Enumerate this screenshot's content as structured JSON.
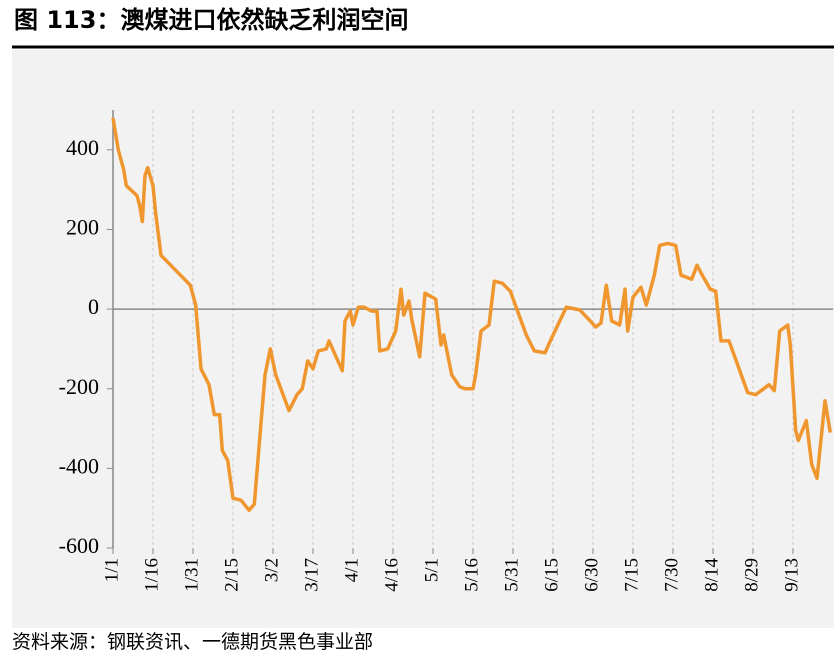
{
  "chart_data": {
    "type": "line",
    "title": "图 113：澳煤进口依然缺乏利润空间",
    "source": "资料来源：钢联资讯、一德期货黑色事业部",
    "x": [
      "1/1",
      "1/3",
      "1/5",
      "1/6",
      "1/10",
      "1/11",
      "1/12",
      "1/13",
      "1/14",
      "1/16",
      "1/17",
      "1/19",
      "1/30",
      "2/1",
      "2/3",
      "2/6",
      "2/8",
      "2/10",
      "2/11",
      "2/13",
      "2/15",
      "2/18",
      "2/21",
      "2/23",
      "2/27",
      "3/1",
      "3/3",
      "3/8",
      "3/11",
      "3/13",
      "3/15",
      "3/17",
      "3/19",
      "3/22",
      "3/23",
      "3/28",
      "3/29",
      "3/31",
      "4/1",
      "4/3",
      "4/5",
      "4/8",
      "4/10",
      "4/11",
      "4/14",
      "4/17",
      "4/19",
      "4/20",
      "4/22",
      "4/23",
      "4/26",
      "4/28",
      "5/2",
      "5/4",
      "5/5",
      "5/8",
      "5/11",
      "5/13",
      "5/16",
      "5/17",
      "5/19",
      "5/22",
      "5/24",
      "5/27",
      "5/30",
      "6/5",
      "6/8",
      "6/12",
      "6/14",
      "6/20",
      "6/25",
      "6/29",
      "7/1",
      "7/3",
      "7/5",
      "7/7",
      "7/10",
      "7/12",
      "7/13",
      "7/15",
      "7/18",
      "7/20",
      "7/23",
      "7/25",
      "7/28",
      "7/31",
      "8/2",
      "8/6",
      "8/8",
      "8/10",
      "8/13",
      "8/15",
      "8/17",
      "8/20",
      "8/27",
      "8/30",
      "9/2",
      "9/4",
      "9/6",
      "9/8",
      "9/11",
      "9/12",
      "9/14",
      "9/15",
      "9/18",
      "9/20",
      "9/22",
      "9/25",
      "9/27"
    ],
    "series": [
      {
        "color": "#f0962e",
        "values": [
          480,
          400,
          350,
          310,
          285,
          260,
          220,
          335,
          355,
          310,
          240,
          135,
          60,
          10,
          -150,
          -190,
          -265,
          -265,
          -355,
          -380,
          -475,
          -480,
          -505,
          -490,
          -165,
          -100,
          -165,
          -255,
          -215,
          -200,
          -130,
          -150,
          -105,
          -100,
          -80,
          -155,
          -30,
          -5,
          -40,
          5,
          5,
          -5,
          -5,
          -105,
          -100,
          -55,
          50,
          -15,
          20,
          -25,
          -120,
          40,
          25,
          -90,
          -65,
          -165,
          -195,
          -200,
          -200,
          -165,
          -55,
          -40,
          70,
          65,
          45,
          -65,
          -105,
          -110,
          -80,
          5,
          -2,
          -30,
          -45,
          -35,
          60,
          -30,
          -40,
          50,
          -55,
          30,
          55,
          10,
          85,
          160,
          165,
          160,
          85,
          75,
          110,
          85,
          50,
          45,
          -80,
          -80,
          -210,
          -215,
          -200,
          -190,
          -205,
          -55,
          -40,
          -90,
          -305,
          -330,
          -280,
          -390,
          -425,
          -230,
          -310
        ]
      }
    ],
    "xlim": [
      "1/1",
      "9/28"
    ],
    "xticks": [
      "1/1",
      "1/16",
      "1/31",
      "2/15",
      "3/2",
      "3/17",
      "4/1",
      "4/16",
      "5/1",
      "5/16",
      "5/31",
      "6/15",
      "6/30",
      "7/15",
      "7/30",
      "8/14",
      "8/29",
      "9/13"
    ],
    "ylim": [
      -600,
      500
    ],
    "yticks": [
      -600,
      -400,
      -200,
      0,
      200,
      400
    ],
    "grid": true
  }
}
